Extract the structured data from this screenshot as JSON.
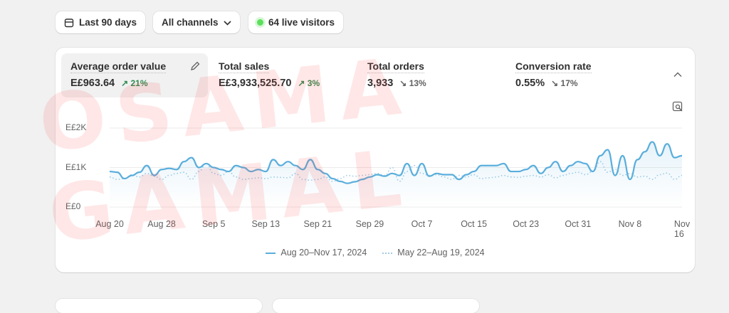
{
  "toolbar": {
    "date_range": "Last 90 days",
    "channels": "All channels",
    "live_visitors": "64 live visitors"
  },
  "metrics": [
    {
      "label": "Average order value",
      "value": "E£963.64",
      "delta": "21%",
      "direction": "up"
    },
    {
      "label": "Total sales",
      "value": "E£3,933,525.70",
      "delta": "3%",
      "direction": "up"
    },
    {
      "label": "Total orders",
      "value": "3,933",
      "delta": "13%",
      "direction": "down"
    },
    {
      "label": "Conversion rate",
      "value": "0.55%",
      "delta": "17%",
      "direction": "down"
    }
  ],
  "watermark": "OSAMA GAMAL",
  "colors": {
    "current": "#5aaedc",
    "previous": "#9fcbe4",
    "up": "#2e8a4e"
  },
  "chart_data": {
    "type": "line",
    "y_ticks": [
      "E£0",
      "E£1K",
      "E£2K"
    ],
    "ylim": [
      0,
      2000
    ],
    "x_ticks": [
      "Aug 20",
      "Aug 28",
      "Sep 5",
      "Sep 13",
      "Sep 21",
      "Sep 29",
      "Oct 7",
      "Oct 15",
      "Oct 23",
      "Oct 31",
      "Nov 8",
      "Nov 16"
    ],
    "series": [
      {
        "name": "Aug 20–Nov 17, 2024",
        "style": "solid",
        "values": [
          900,
          880,
          720,
          800,
          880,
          1050,
          800,
          950,
          980,
          950,
          1150,
          1250,
          1000,
          1100,
          1000,
          950,
          900,
          1050,
          1000,
          900,
          950,
          900,
          1200,
          1050,
          1150,
          1050,
          950,
          1200,
          950,
          850,
          720,
          650,
          600,
          640,
          700,
          760,
          820,
          780,
          850,
          800,
          1100,
          800,
          1100,
          780,
          850,
          820,
          820,
          700,
          820,
          900,
          1050,
          1050,
          1050,
          1100,
          900,
          900,
          950,
          1050,
          850,
          1000,
          1150,
          900,
          1050,
          1150,
          1100,
          900,
          1300,
          1450,
          800,
          1300,
          700,
          1200,
          1400,
          1650,
          1300,
          1600,
          1250,
          1300
        ]
      },
      {
        "name": "May 22–Aug 19, 2024",
        "style": "dotted",
        "values": [
          760,
          700,
          720,
          820,
          760,
          850,
          780,
          700,
          800,
          850,
          880,
          700,
          900,
          1100,
          850,
          800,
          900,
          760,
          700,
          720,
          740,
          720,
          760,
          750,
          740,
          850,
          700,
          680,
          700,
          760,
          650,
          720,
          800,
          780,
          800,
          820,
          850,
          800,
          1000,
          650,
          900,
          1050,
          850,
          800,
          820,
          760,
          700,
          800,
          760,
          820,
          720,
          740,
          760,
          800,
          760,
          750,
          780,
          800,
          760,
          820,
          740,
          800,
          850,
          880,
          820,
          900,
          1150,
          880,
          960,
          800,
          850,
          760,
          780,
          700,
          820,
          860,
          700,
          800
        ]
      }
    ]
  }
}
